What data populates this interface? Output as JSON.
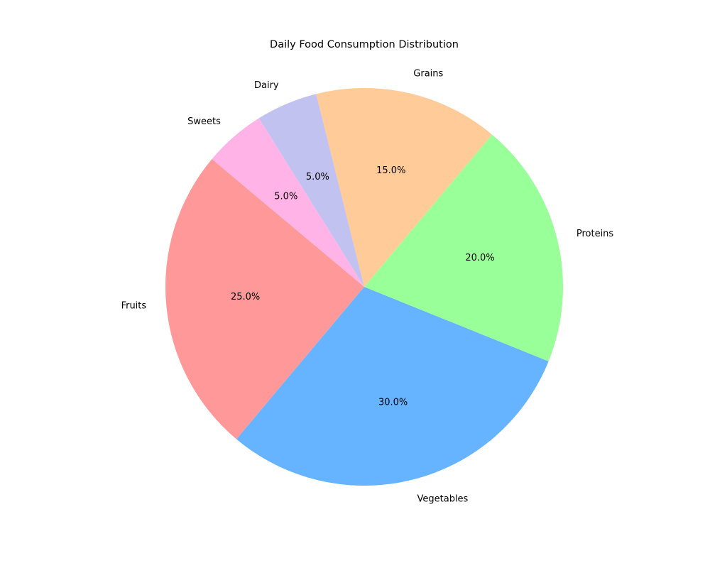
{
  "chart_data": {
    "type": "pie",
    "title": "Daily Food Consumption Distribution",
    "categories": [
      "Fruits",
      "Vegetables",
      "Proteins",
      "Grains",
      "Dairy",
      "Sweets"
    ],
    "values": [
      25,
      30,
      20,
      15,
      5,
      5
    ],
    "percent_labels": [
      "25.0%",
      "30.0%",
      "20.0%",
      "15.0%",
      "5.0%",
      "5.0%"
    ],
    "colors": [
      "#ff9999",
      "#66b3ff",
      "#99ff99",
      "#ffcc99",
      "#c2c2f0",
      "#ffb3e6"
    ],
    "start_angle_deg": 140,
    "direction": "counterclockwise",
    "legend": "none"
  }
}
